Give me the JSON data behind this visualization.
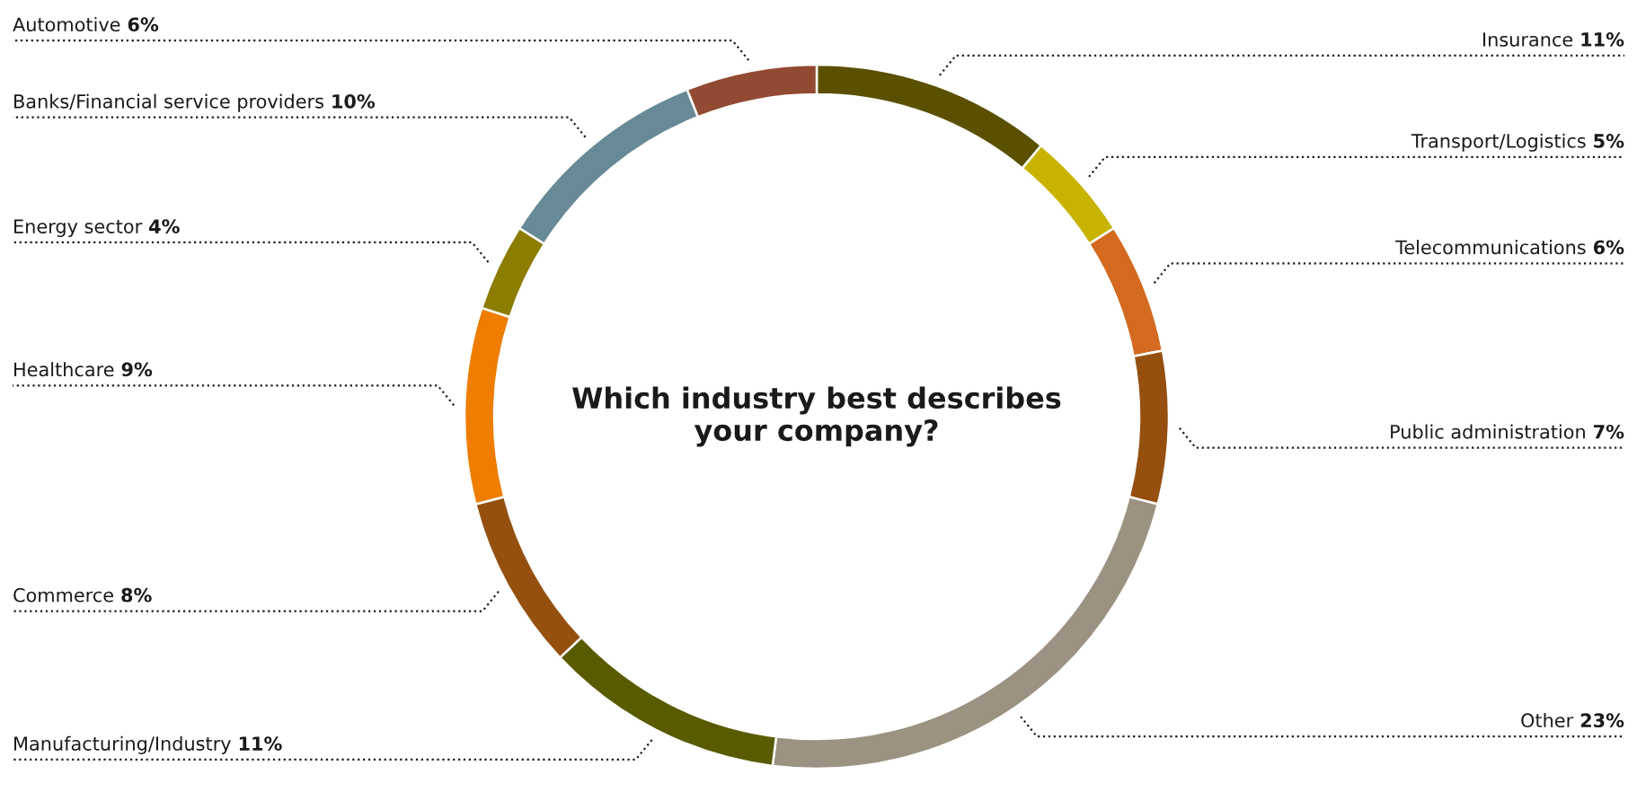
{
  "chart_data": {
    "type": "donut",
    "title": "Which industry best describes\nyour company?",
    "categories": [
      "Insurance",
      "Transport/Logistics",
      "Telecommunications",
      "Public administration",
      "Other",
      "Manufacturing/Industry",
      "Commerce",
      "Healthcare",
      "Energy sector",
      "Banks/Financial service providers",
      "Automotive"
    ],
    "values": [
      11,
      5,
      6,
      7,
      23,
      11,
      8,
      9,
      4,
      10,
      6
    ],
    "value_labels": [
      "11%",
      "5%",
      "6%",
      "7%",
      "23%",
      "11%",
      "8%",
      "9%",
      "4%",
      "10%",
      "6%"
    ],
    "colors": [
      "#5a5000",
      "#c8b400",
      "#d46a20",
      "#955010",
      "#9b9282",
      "#5a5a00",
      "#955010",
      "#ee7d00",
      "#8c7c00",
      "#678a96",
      "#924a32"
    ],
    "legend": false
  }
}
